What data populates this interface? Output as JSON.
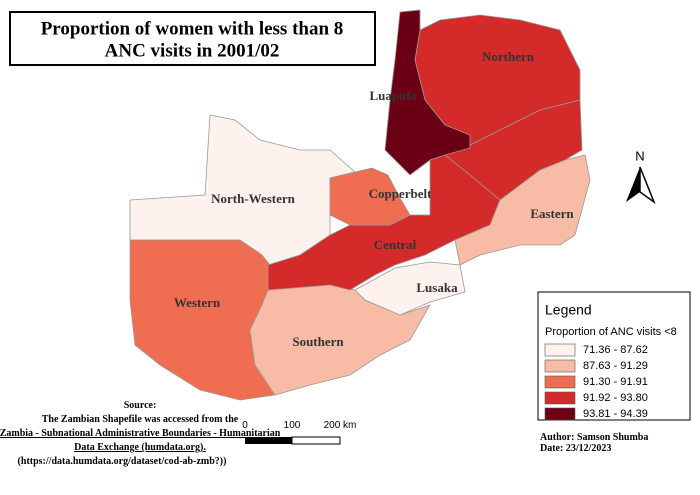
{
  "title": [
    "Proportion of women with less than 8",
    "ANC visits in 2001/02"
  ],
  "provinces": [
    {
      "name": "North-Western",
      "color": "#fdf2ee"
    },
    {
      "name": "Western",
      "color": "#ef6e52"
    },
    {
      "name": "Southern",
      "color": "#f8bba6"
    },
    {
      "name": "Lusaka",
      "color": "#fdf2ee"
    },
    {
      "name": "Central",
      "color": "#d42a2a"
    },
    {
      "name": "Copperbelt",
      "color": "#ef6e52"
    },
    {
      "name": "Eastern",
      "color": "#f8bba6"
    },
    {
      "name": null,
      "color": "#d42a2a"
    },
    {
      "name": "Northern",
      "color": "#d42a2a"
    },
    {
      "name": "Luapula",
      "color": "#6b0014"
    }
  ],
  "north": "N",
  "legend": {
    "title": "Legend",
    "subtitle": "Proportion of ANC visits <8",
    "classes": [
      {
        "label": "71.36 - 87.62",
        "color": "#fdf2ee"
      },
      {
        "label": "87.63 - 91.29",
        "color": "#f8bba6"
      },
      {
        "label": "91.30 - 91.91",
        "color": "#ef6e52"
      },
      {
        "label": "91.92 - 93.80",
        "color": "#d42a2a"
      },
      {
        "label": "93.81 - 94.39",
        "color": "#6b0014"
      }
    ]
  },
  "scale": [
    "0",
    "100",
    "200 km"
  ],
  "source": {
    "heading": "Source:",
    "lines": [
      "The Zambian Shapefile was accessed from the",
      "Zambia - Subnational Administrative Boundaries - Humanitarian",
      "Data Exchange (humdata.org).",
      "(https://data.humdata.org/dataset/cod-ab-zmb?))"
    ]
  },
  "author": "Author: Samson Shumba",
  "date": "Date: 23/12/2023"
}
